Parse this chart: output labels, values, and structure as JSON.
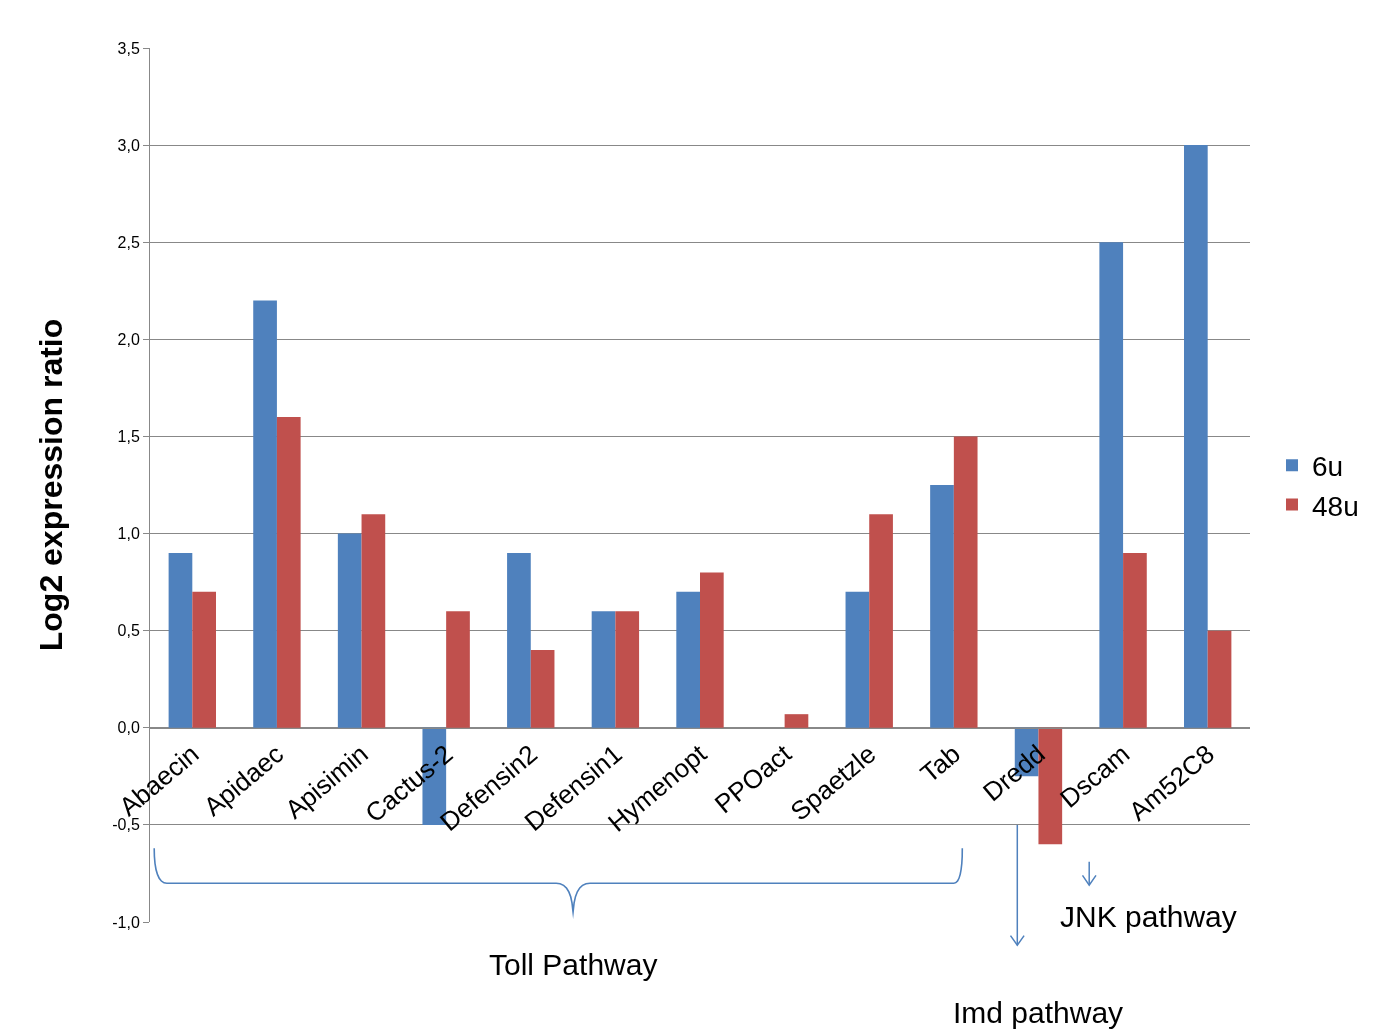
{
  "chart_data": {
    "type": "bar",
    "ylabel": "Log2 expression ratio",
    "categories": [
      "Abaecin",
      "Apidaec",
      "Apisimin",
      "Cactus-2",
      "Defensin2",
      "Defensin1",
      "Hymenopt",
      "PPOact",
      "Spaetzle",
      "Tab",
      "Dredd",
      "Dscam",
      "Am52C8"
    ],
    "series": [
      {
        "name": "6u",
        "color": "#4f81bd",
        "values": [
          0.9,
          2.2,
          1.0,
          -0.5,
          0.9,
          0.6,
          0.7,
          0,
          0.7,
          1.25,
          -0.25,
          2.5,
          3.0
        ]
      },
      {
        "name": "48u",
        "color": "#c0504d",
        "values": [
          0.7,
          1.6,
          1.1,
          0.6,
          0.4,
          0.6,
          0.8,
          0.07,
          1.1,
          1.5,
          -0.6,
          0.9,
          0.5
        ]
      }
    ],
    "ylim": [
      -1,
      3.5
    ],
    "yticks": [
      {
        "value": -1,
        "label": "-1,0"
      },
      {
        "value": -0.5,
        "label": "-0,5"
      },
      {
        "value": 0,
        "label": "0,0"
      },
      {
        "value": 0.5,
        "label": "0,5"
      },
      {
        "value": 1,
        "label": "1,0"
      },
      {
        "value": 1.5,
        "label": "1,5"
      },
      {
        "value": 2,
        "label": "2,0"
      },
      {
        "value": 2.5,
        "label": "2,5"
      },
      {
        "value": 3,
        "label": "3,0"
      },
      {
        "value": 3.5,
        "label": "3,5"
      }
    ],
    "grid": "y",
    "legend": "right",
    "annotations": [
      "Toll Pathway",
      "Imd pathway",
      "JNK pathway"
    ]
  }
}
